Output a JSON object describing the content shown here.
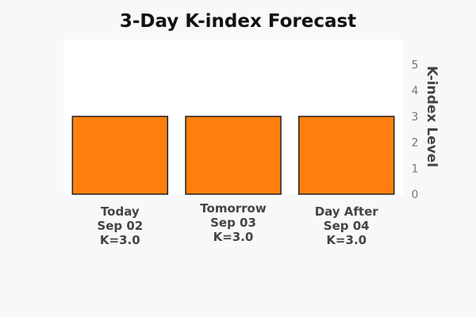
{
  "chart_data": {
    "type": "bar",
    "title": "3-Day K-index Forecast",
    "ylabel": "K-index Level",
    "xlabel": "",
    "ylim": [
      0,
      6
    ],
    "yticks": [
      0,
      1,
      2,
      3,
      4,
      5
    ],
    "y_axis_side": "right",
    "grid": false,
    "categories": [
      [
        "Today",
        "Sep 02",
        "K=3.0"
      ],
      [
        "Tomorrow",
        "Sep 03",
        "K=3.0"
      ],
      [
        "Day After",
        "Sep 04",
        "K=3.0"
      ]
    ],
    "values": [
      3.0,
      3.0,
      3.0
    ],
    "bar_color": "#ff7f0e",
    "bar_edge_color": "#222222",
    "plot_background": "#ffffff",
    "page_background": "#f7f8fa"
  }
}
